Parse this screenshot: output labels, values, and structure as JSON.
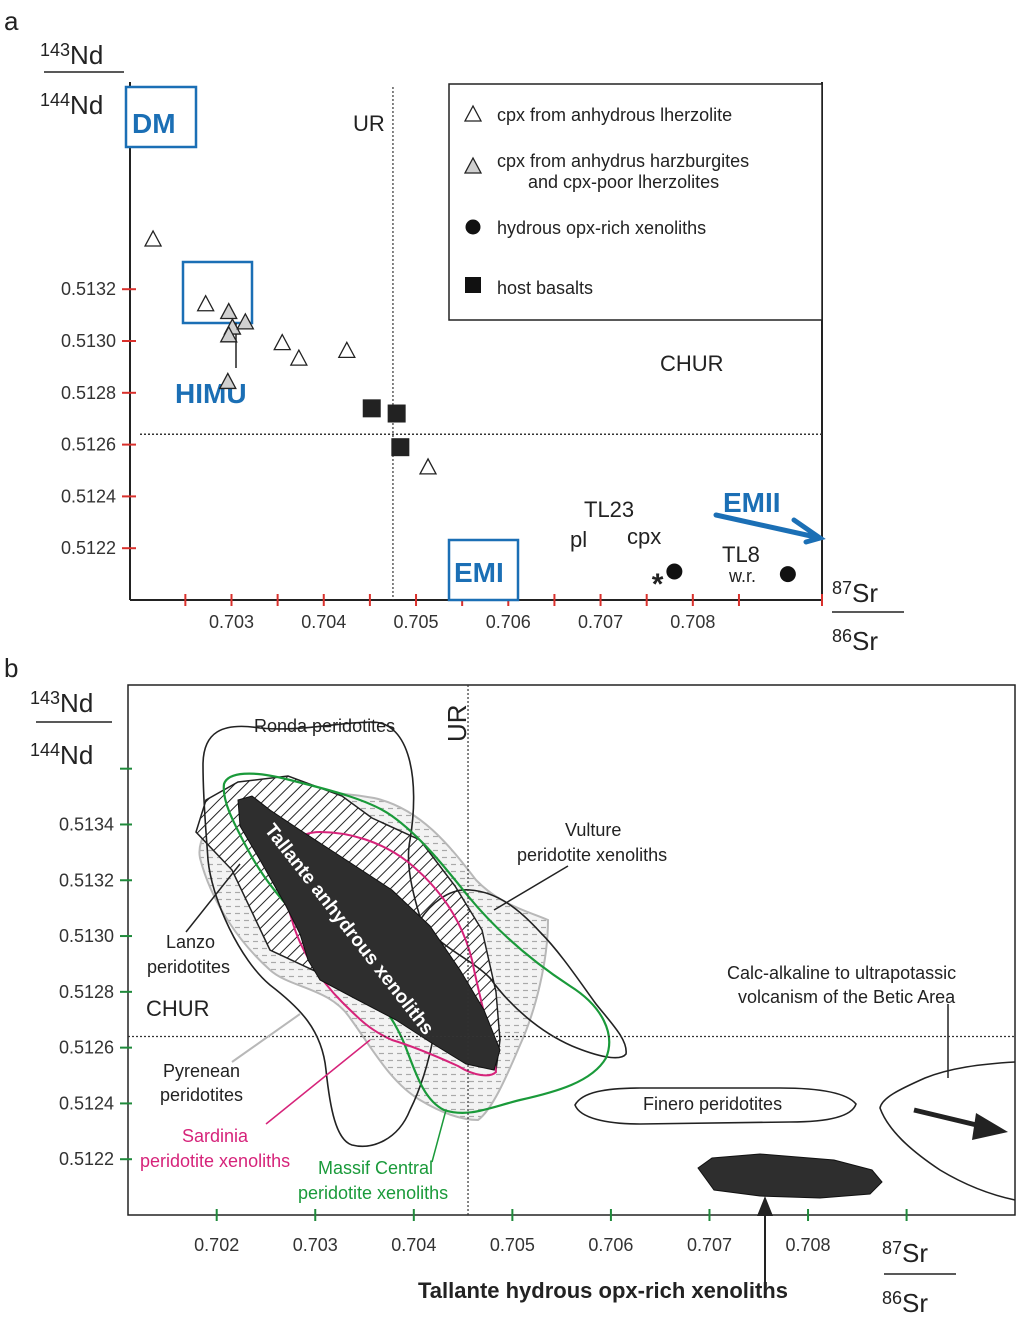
{
  "chart_data": [
    {
      "panel": "a",
      "type": "scatter",
      "xlim": [
        0.7019,
        0.7094
      ],
      "ylim": [
        0.512,
        0.514
      ],
      "x_ticks": [
        "0.703",
        "0.704",
        "0.705",
        "0.706",
        "0.707",
        "0.708"
      ],
      "y_ticks": [
        "0.5122",
        "0.5124",
        "0.5126",
        "0.5128",
        "0.5130",
        "0.5132"
      ],
      "x_tick_values": [
        0.703,
        0.704,
        0.705,
        0.706,
        0.707,
        0.708
      ],
      "y_tick_values": [
        0.5122,
        0.5124,
        0.5126,
        0.5128,
        0.513,
        0.5132
      ],
      "x_axis_label": {
        "sup": "87",
        "el": "Sr",
        "sup2": "86",
        "el2": "Sr"
      },
      "y_axis_label": {
        "sup": "143",
        "el": "Nd",
        "sup2": "144",
        "el2": "Nd"
      },
      "reference_lines": [
        {
          "label": "UR",
          "orientation": "vertical",
          "value": 0.70475
        },
        {
          "label": "CHUR",
          "orientation": "horizontal",
          "value": 0.51264
        }
      ],
      "legend": {
        "placement": "top-right",
        "entries": [
          {
            "label": "cpx from anhydrous lherzolite",
            "marker": "open-triangle"
          },
          {
            "label": "cpx from anhydrus harzburgites",
            "label2": "and cpx-poor   lherzolites",
            "marker": "grey-triangle"
          },
          {
            "label": "hydrous  opx-rich xenoliths",
            "marker": "filled-circle"
          },
          {
            "label": "host   basalts",
            "marker": "filled-square"
          }
        ]
      },
      "series": [
        {
          "marker": "open-triangle",
          "points": [
            [
              0.70215,
              0.51339
            ],
            [
              0.70272,
              0.51314
            ],
            [
              0.70355,
              0.51299
            ],
            [
              0.70373,
              0.51293
            ],
            [
              0.70425,
              0.51296
            ],
            [
              0.70513,
              0.51251
            ]
          ]
        },
        {
          "marker": "grey-triangle",
          "points": [
            [
              0.70297,
              0.51311
            ],
            [
              0.70301,
              0.51305
            ],
            [
              0.70297,
              0.51302
            ],
            [
              0.70315,
              0.51307
            ],
            [
              0.70296,
              0.51284
            ]
          ]
        },
        {
          "marker": "filled-square",
          "points": [
            [
              0.70452,
              0.51274
            ],
            [
              0.70479,
              0.51272
            ],
            [
              0.70483,
              0.51259
            ]
          ]
        },
        {
          "marker": "filled-circle",
          "points": [
            [
              0.7078,
              0.51211
            ],
            [
              0.70903,
              0.5121
            ]
          ]
        },
        {
          "marker": "asterisk",
          "points": [
            [
              0.70763,
              0.5121
            ]
          ]
        }
      ],
      "annotations": {
        "UR": "UR",
        "CHUR": "CHUR",
        "TL23": "TL23",
        "pl": "pl",
        "cpx": "cpx",
        "TL8": "TL8",
        "wr": "w.r.",
        "star": "*"
      },
      "reservoirs": [
        "DM",
        "HIMU",
        "EMI",
        "EMII"
      ]
    },
    {
      "panel": "b",
      "type": "area",
      "xlim": [
        0.7011,
        0.7101
      ],
      "ylim": [
        0.512,
        0.5139
      ],
      "x_ticks": [
        "0.702",
        "0.703",
        "0.704",
        "0.705",
        "0.706",
        "0.707",
        "0.708"
      ],
      "y_ticks": [
        "0.5122",
        "0.5124",
        "0.5126",
        "0.5128",
        "0.5130",
        "0.5132",
        "0.5134"
      ],
      "x_tick_values": [
        0.702,
        0.703,
        0.704,
        0.705,
        0.706,
        0.707,
        0.708
      ],
      "y_tick_values": [
        0.5122,
        0.5124,
        0.5126,
        0.5128,
        0.513,
        0.5132,
        0.5134
      ],
      "x_axis_label": {
        "sup": "87",
        "el": "Sr",
        "sup2": "86",
        "el2": "Sr"
      },
      "y_axis_label": {
        "sup": "143",
        "el": "Nd",
        "sup2": "144",
        "el2": "Nd"
      },
      "reference_lines": [
        {
          "label": "UR",
          "orientation": "vertical",
          "value": 0.70455
        },
        {
          "label": "CHUR",
          "orientation": "horizontal",
          "value": 0.51264
        }
      ],
      "fields": [
        {
          "name": "Ronda peridotites",
          "style": "black outline"
        },
        {
          "name": "Vulture peridotite xenoliths",
          "style": "black outline"
        },
        {
          "name": "Lanzo peridotites",
          "style": "hatched"
        },
        {
          "name": "Pyrenean peridotites",
          "style": "grey dotted fill"
        },
        {
          "name": "Sardinia peridotite xenoliths",
          "style": "magenta outline"
        },
        {
          "name": "Massif Central peridotite xenoliths",
          "style": "green outline"
        },
        {
          "name": "Tallante anhydrous xenoliths",
          "style": "black fill"
        },
        {
          "name": "Finero peridotites",
          "style": "black outline"
        },
        {
          "name": "Tallante hydrous opx-rich xenoliths",
          "style": "black fill"
        },
        {
          "name": "Calc-alkaline to ultrapotassic volcanism of the Betic Area",
          "style": "black outline"
        }
      ],
      "labels": {
        "ronda": "Ronda peridotites",
        "vulture1": "Vulture",
        "vulture2": "peridotite xenoliths",
        "lanzo1": "Lanzo",
        "lanzo2": "peridotites",
        "chur": "CHUR",
        "ur": "UR",
        "pyr1": "Pyrenean",
        "pyr2": "peridotites",
        "sard1": "Sardinia",
        "sard2": "peridotite xenoliths",
        "mc1": "Massif  Central",
        "mc2": "peridotite  xenoliths",
        "tallante_anh": "Tallante anhydrous xenoliths",
        "finero": "Finero peridotites",
        "calc1": "Calc-alkaline to ultrapotassic",
        "calc2": "volcanism of the Betic Area",
        "tallante_hyd": "Tallante hydrous opx-rich xenoliths"
      }
    }
  ],
  "panels": {
    "a": "a",
    "b": "b"
  },
  "colors": {
    "blue": "#1b6fb5",
    "red_tick": "#d9302c",
    "green_tick": "#1f8a3b",
    "magenta": "#d6237a",
    "green": "#1a9a3a",
    "grey": "#b8b8b8",
    "dark": "#2e2e2e"
  }
}
